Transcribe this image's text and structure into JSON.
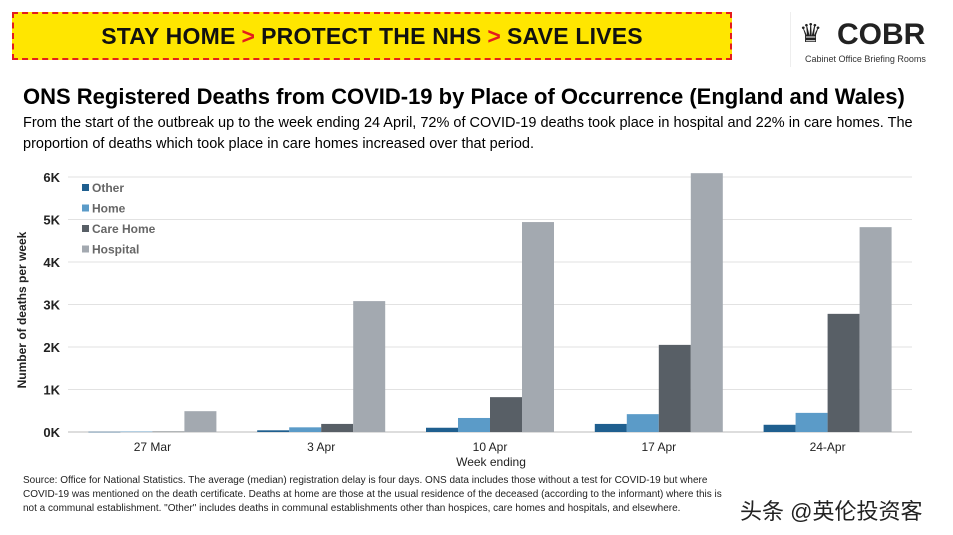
{
  "banner": {
    "part1": "STAY HOME",
    "part2": "PROTECT THE NHS",
    "part3": "SAVE LIVES",
    "arrow": ">"
  },
  "logo": {
    "name": "COBR",
    "subtitle": "Cabinet Office Briefing Rooms"
  },
  "title": "ONS Registered Deaths from COVID-19 by Place of Occurrence (England and Wales)",
  "description": "From the start of the outbreak up to the week ending 24 April, 72% of COVID-19 deaths took place in hospital and 22% in care homes. The proportion of deaths which took place in care homes increased over that period.",
  "footnote": "Source: Office for National Statistics. The average (median) registration delay is four days. ONS data includes those without a test for COVID-19 but where COVID-19 was mentioned on the death certificate. Deaths at home are those at the usual residence of the deceased (according to the informant) where this is not a communal establishment. \"Other\" includes deaths in communal establishments other than hospices, care homes and hospitals, and elsewhere.",
  "watermark": "头条 @英伦投资客",
  "chart_data": {
    "type": "bar",
    "categories": [
      "27 Mar",
      "3 Apr",
      "10 Apr",
      "17 Apr",
      "24-Apr"
    ],
    "series": [
      {
        "name": "Other",
        "color": "#1f5f8f",
        "values": [
          5,
          40,
          100,
          190,
          170
        ]
      },
      {
        "name": "Home",
        "color": "#5b9bc8",
        "values": [
          10,
          110,
          330,
          420,
          450
        ]
      },
      {
        "name": "Care Home",
        "color": "#585f66",
        "values": [
          10,
          190,
          820,
          2050,
          2780
        ]
      },
      {
        "name": "Hospital",
        "color": "#a3a9b0",
        "values": [
          490,
          3080,
          4940,
          6090,
          4820
        ]
      }
    ],
    "xlabel": "Week ending",
    "ylabel": "Number of deaths per week",
    "ylim": [
      0,
      6000
    ],
    "yticks": [
      {
        "v": 0,
        "label": "0K"
      },
      {
        "v": 1000,
        "label": "1K"
      },
      {
        "v": 2000,
        "label": "2K"
      },
      {
        "v": 3000,
        "label": "3K"
      },
      {
        "v": 4000,
        "label": "4K"
      },
      {
        "v": 5000,
        "label": "5K"
      },
      {
        "v": 6000,
        "label": "6K"
      }
    ],
    "grid": true,
    "legend": "top-left"
  }
}
